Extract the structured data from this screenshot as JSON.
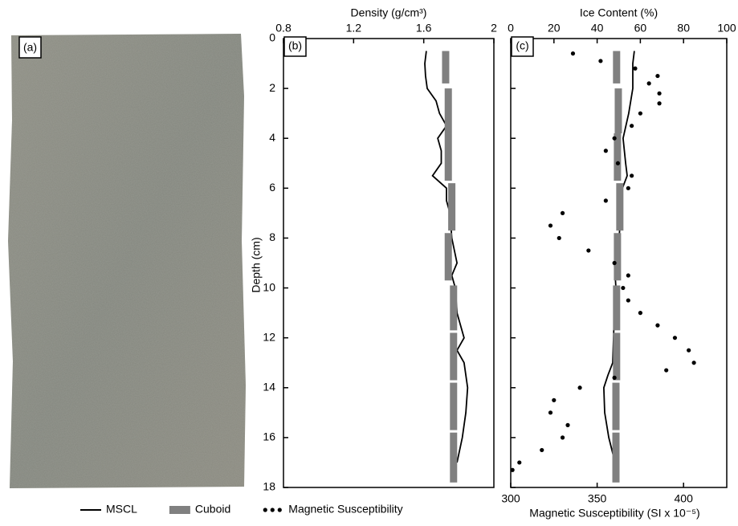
{
  "photo_label": "(a)",
  "chart_data": [
    {
      "type": "profile",
      "panel": "(b)",
      "xlabel": "Density (g/cm³)",
      "ylabel": "Depth (cm)",
      "xlim": [
        0.8,
        2
      ],
      "xticks": [
        0.8,
        1.2,
        1.6,
        2
      ],
      "ylim": [
        0,
        18
      ],
      "yticks": [
        0,
        2,
        4,
        6,
        8,
        10,
        12,
        14,
        16,
        18
      ],
      "show_ytick_labels": true,
      "series": [
        {
          "style": "line",
          "color": "#000000",
          "depth": [
            0.5,
            1,
            1.5,
            2,
            2.5,
            3,
            3.5,
            4,
            4.5,
            5,
            5.5,
            6,
            6.5,
            7,
            8,
            9,
            9.5,
            10,
            11,
            12,
            12.5,
            13,
            14,
            15,
            16,
            17
          ],
          "values": [
            1.615,
            1.606,
            1.61,
            1.62,
            1.67,
            1.69,
            1.73,
            1.68,
            1.7,
            1.7,
            1.65,
            1.73,
            1.73,
            1.75,
            1.76,
            1.79,
            1.76,
            1.78,
            1.79,
            1.83,
            1.79,
            1.83,
            1.85,
            1.84,
            1.82,
            1.79
          ]
        },
        {
          "style": "segments",
          "color": "#808080",
          "depth_top": [
            0.5,
            2,
            3.8,
            5.8,
            7.8,
            9.9,
            11.8,
            13.8,
            15.8
          ],
          "depth_bottom": [
            1.8,
            3.8,
            5.7,
            7.7,
            9.7,
            11.7,
            13.7,
            15.7,
            17.8
          ],
          "values": [
            1.725,
            1.74,
            1.74,
            1.76,
            1.74,
            1.77,
            1.77,
            1.77,
            1.77
          ]
        }
      ]
    },
    {
      "type": "profile",
      "panel": "(c)",
      "xlabel": "Ice Content (%)",
      "xlim": [
        0,
        100
      ],
      "xticks": [
        0,
        20,
        40,
        60,
        80,
        100
      ],
      "x2label": "Magnetic Susceptibility (SI x 10⁻⁵)",
      "x2lim": [
        300,
        425
      ],
      "x2ticks": [
        300,
        350,
        400
      ],
      "ylim": [
        0,
        18
      ],
      "yticks": [
        0,
        2,
        4,
        6,
        8,
        10,
        12,
        14,
        16,
        18
      ],
      "show_ytick_labels": false,
      "series": [
        {
          "name": "MSCL",
          "style": "line",
          "color": "#000000",
          "depth": [
            0.5,
            1,
            2,
            3,
            4,
            5,
            5.5,
            6,
            7,
            8,
            9,
            10,
            11,
            12,
            13,
            13.5,
            14,
            15,
            16,
            17
          ],
          "values": [
            57.2,
            56.5,
            56.5,
            54.6,
            52,
            53.2,
            53.9,
            51.7,
            50.9,
            50.2,
            48,
            48.7,
            48,
            47.6,
            47.2,
            45,
            43.1,
            43.5,
            45.4,
            48.3
          ]
        },
        {
          "name": "Cuboid",
          "style": "segments",
          "color": "#808080",
          "depth_top": [
            0.5,
            2,
            3.8,
            5.8,
            7.8,
            9.9,
            11.8,
            13.8,
            15.8
          ],
          "depth_bottom": [
            1.8,
            3.8,
            5.7,
            7.7,
            9.7,
            11.7,
            13.7,
            15.7,
            17.8
          ],
          "values": [
            49,
            49.8,
            49.4,
            50.5,
            49.4,
            49,
            49,
            48.7,
            48.7
          ]
        },
        {
          "name": "Magnetic Susceptibility",
          "style": "dots",
          "color": "#000000",
          "axis": "x2",
          "depth": [
            0.6,
            0.9,
            1.2,
            1.5,
            1.8,
            2.2,
            2.6,
            3,
            3.5,
            4,
            4.5,
            5,
            5.5,
            6,
            6.5,
            7,
            7.5,
            8,
            8.5,
            9,
            9.5,
            10,
            10.5,
            11,
            11.5,
            12,
            12.5,
            13,
            13.3,
            13.6,
            14,
            14.5,
            15,
            15.5,
            16,
            16.5,
            17,
            17.3
          ],
          "values": [
            336,
            352,
            372,
            385,
            380,
            386,
            386,
            375,
            370,
            360,
            355,
            362,
            370,
            368,
            355,
            330,
            323,
            328,
            345,
            360,
            368,
            365,
            368,
            375,
            385,
            395,
            403,
            406,
            390,
            360,
            340,
            325,
            323,
            333,
            330,
            318,
            305,
            301
          ]
        }
      ]
    }
  ]
}
